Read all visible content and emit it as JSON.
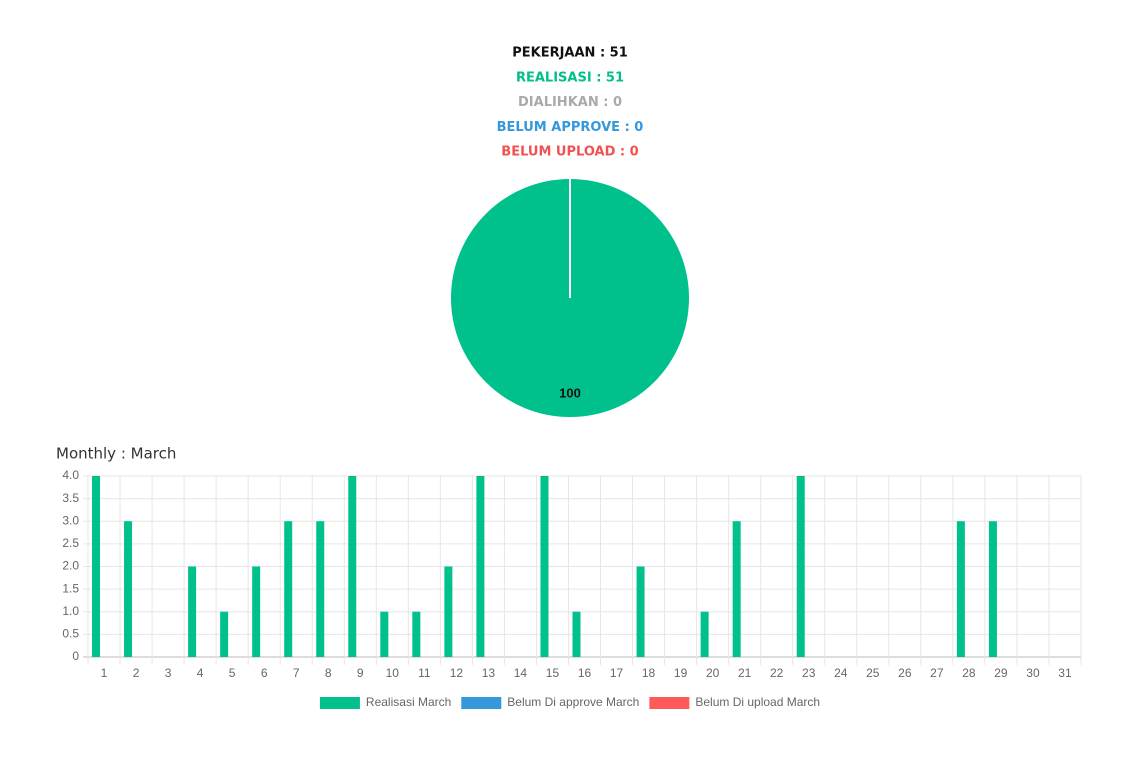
{
  "summary": [
    {
      "text": "PEKERJAAN : 51",
      "color": "#111111"
    },
    {
      "text": "REALISASI : 51",
      "color": "#00bf8a"
    },
    {
      "text": "DIALIHKAN : 0",
      "color": "#aaaaaa"
    },
    {
      "text": "BELUM APPROVE : 0",
      "color": "#3498db"
    },
    {
      "text": "BELUM UPLOAD : 0",
      "color": "#f05252"
    }
  ],
  "chart_data": [
    {
      "type": "pie",
      "values": [
        100
      ],
      "color": "#00c08b"
    },
    {
      "type": "bar",
      "title": "Monthly : March",
      "categories": [
        "1",
        "2",
        "3",
        "4",
        "5",
        "6",
        "7",
        "8",
        "9",
        "10",
        "11",
        "12",
        "13",
        "14",
        "15",
        "16",
        "17",
        "18",
        "19",
        "20",
        "21",
        "22",
        "23",
        "24",
        "25",
        "26",
        "27",
        "28",
        "29",
        "30",
        "31"
      ],
      "series": [
        {
          "name": "Realisasi March",
          "color": "#00c08b",
          "values": [
            4,
            3,
            0,
            2,
            1,
            2,
            3,
            3,
            4,
            1,
            1,
            2,
            4,
            0,
            4,
            1,
            0,
            2,
            0,
            1,
            3,
            0,
            4,
            0,
            0,
            0,
            0,
            3,
            3,
            0,
            0
          ]
        },
        {
          "name": "Belum Di approve March",
          "color": "#3498db",
          "values": [
            0,
            0,
            0,
            0,
            0,
            0,
            0,
            0,
            0,
            0,
            0,
            0,
            0,
            0,
            0,
            0,
            0,
            0,
            0,
            0,
            0,
            0,
            0,
            0,
            0,
            0,
            0,
            0,
            0,
            0,
            0
          ]
        },
        {
          "name": "Belum Di upload March",
          "color": "#ff5a5a",
          "values": [
            0,
            0,
            0,
            0,
            0,
            0,
            0,
            0,
            0,
            0,
            0,
            0,
            0,
            0,
            0,
            0,
            0,
            0,
            0,
            0,
            0,
            0,
            0,
            0,
            0,
            0,
            0,
            0,
            0,
            0,
            0
          ]
        }
      ],
      "ylim": [
        0,
        4
      ],
      "yticks": [
        0,
        0.5,
        {
          "value": 1,
          "label": "1.0"
        },
        1.5,
        {
          "value": 2,
          "label": "2.0"
        },
        2.5,
        {
          "value": 3,
          "label": "3.0"
        },
        3.5,
        {
          "value": 4,
          "label": "4.0"
        }
      ],
      "grid": true,
      "legend": "bottom"
    }
  ]
}
